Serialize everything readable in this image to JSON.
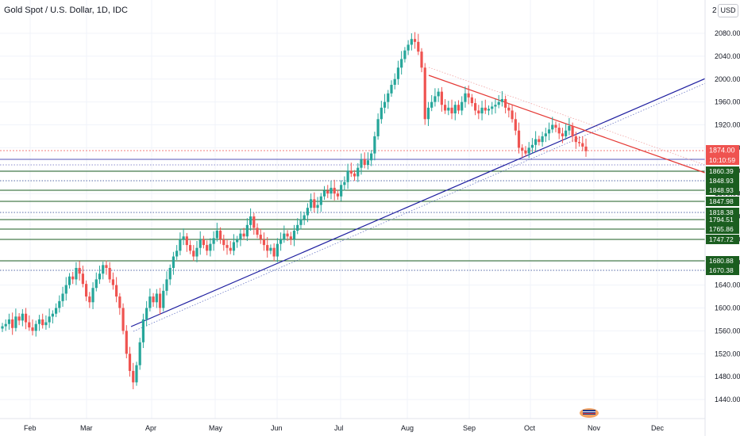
{
  "header": {
    "title": "Gold Spot / U.S. Dollar, 1D, IDC",
    "currency": "USD",
    "corner_label": "2"
  },
  "colors": {
    "up": "#26a69a",
    "down": "#ef5350",
    "support_line": "#1e1ea0",
    "resistance_line": "#e53935",
    "level_green": "#1b5e20",
    "price_label": "#ef5350"
  },
  "chart_data": {
    "type": "candlestick",
    "title": "Gold Spot / U.S. Dollar, 1D, IDC",
    "ylim": [
      1400,
      2110
    ],
    "y_ticks": [
      1440,
      1480,
      1520,
      1560,
      1600,
      1640,
      1680,
      1720,
      1760,
      1800,
      1840,
      1880,
      1920,
      1960,
      2000,
      2040,
      2080
    ],
    "y_tick_labels": [
      "1440.00",
      "1480.00",
      "1520.00",
      "1560.00",
      "1600.00",
      "1640.00",
      "1680.00",
      "1720.00",
      "1760.00",
      "1800.00",
      "1840.00",
      "1880.00",
      "1920.00",
      "1960.00",
      "2000.00",
      "2040.00",
      "2080.00"
    ],
    "x_labels": [
      "Feb",
      "Mar",
      "Apr",
      "May",
      "Jun",
      "Jul",
      "Aug",
      "Sep",
      "Oct",
      "Nov",
      "Dec"
    ],
    "price_label": "1874.00",
    "countdown": "10:10:59",
    "levels": [
      {
        "value": 1860.39,
        "label": "1860.39",
        "style": "solid"
      },
      {
        "value": 1848.93,
        "label": "1848.93",
        "style": "dotted"
      },
      {
        "value": 1848.93,
        "label": "1848.93",
        "style": "solid"
      },
      {
        "value": 1847.98,
        "label": "1847.98",
        "style": "solid"
      },
      {
        "value": 1818.38,
        "label": "1818.38",
        "style": "dotted"
      },
      {
        "value": 1794.51,
        "label": "1794.51",
        "style": "solid"
      },
      {
        "value": 1765.86,
        "label": "1765.86",
        "style": "solid"
      },
      {
        "value": 1747.72,
        "label": "1747.72",
        "style": "solid"
      },
      {
        "value": 1680.88,
        "label": "1680.88",
        "style": "solid"
      },
      {
        "value": 1670.38,
        "label": "1670.38",
        "style": "dotted"
      }
    ],
    "closes": [
      1568,
      1572,
      1580,
      1565,
      1585,
      1578,
      1590,
      1575,
      1566,
      1560,
      1572,
      1580,
      1570,
      1575,
      1585,
      1590,
      1600,
      1612,
      1625,
      1640,
      1655,
      1650,
      1670,
      1660,
      1642,
      1620,
      1610,
      1635,
      1650,
      1660,
      1675,
      1670,
      1650,
      1640,
      1620,
      1600,
      1560,
      1520,
      1490,
      1470,
      1500,
      1540,
      1580,
      1600,
      1620,
      1610,
      1625,
      1600,
      1630,
      1650,
      1670,
      1690,
      1700,
      1720,
      1725,
      1710,
      1700,
      1690,
      1705,
      1720,
      1710,
      1700,
      1712,
      1722,
      1735,
      1720,
      1710,
      1705,
      1700,
      1715,
      1720,
      1730,
      1725,
      1745,
      1760,
      1740,
      1728,
      1720,
      1710,
      1700,
      1705,
      1690,
      1712,
      1720,
      1730,
      1725,
      1720,
      1735,
      1745,
      1755,
      1762,
      1775,
      1790,
      1775,
      1780,
      1795,
      1805,
      1800,
      1810,
      1800,
      1795,
      1815,
      1820,
      1840,
      1835,
      1830,
      1845,
      1860,
      1850,
      1858,
      1870,
      1900,
      1930,
      1950,
      1960,
      1975,
      1990,
      2000,
      2020,
      2035,
      2050,
      2060,
      2070,
      2065,
      2048,
      2020,
      1930,
      1950,
      1960,
      1970,
      1978,
      1955,
      1945,
      1950,
      1940,
      1955,
      1945,
      1960,
      1975,
      1968,
      1958,
      1945,
      1940,
      1950,
      1945,
      1948,
      1952,
      1955,
      1960,
      1965,
      1950,
      1945,
      1930,
      1910,
      1880,
      1875,
      1870,
      1880,
      1885,
      1895,
      1890,
      1900,
      1905,
      1912,
      1920,
      1915,
      1905,
      1900,
      1910,
      1918,
      1900,
      1890,
      1888,
      1882,
      1874
    ]
  }
}
